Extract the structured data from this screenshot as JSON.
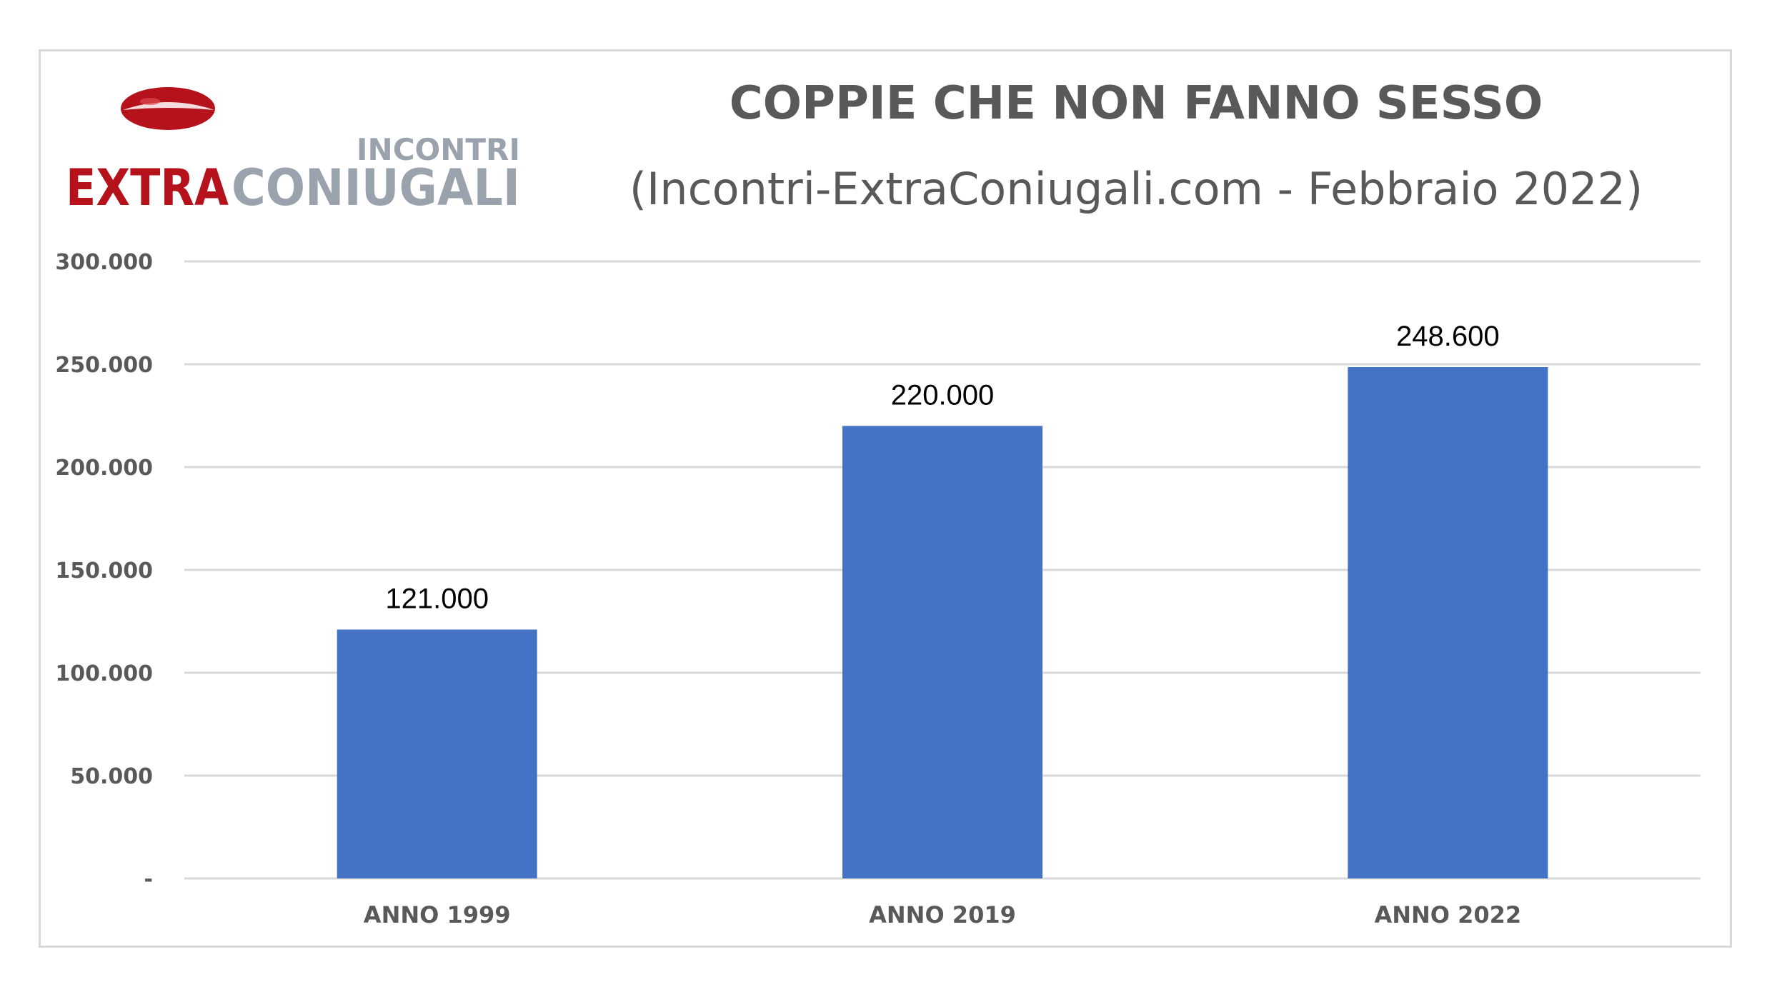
{
  "logo": {
    "small_text": "INCONTRI",
    "text_red": "EXTRA",
    "text_gray": "CONIUGALI",
    "icon": "lips-icon"
  },
  "colors": {
    "bar": "#4472c4",
    "grid": "#d9d9d9",
    "text": "#595959",
    "logo_red": "#b5121b",
    "logo_gray": "#9aa3ad"
  },
  "chart_data": {
    "type": "bar",
    "title": "COPPIE CHE NON FANNO SESSO",
    "subtitle": "(Incontri-ExtraConiugali.com - Febbraio 2022)",
    "categories": [
      "ANNO 1999",
      "ANNO 2019",
      "ANNO 2022"
    ],
    "values": [
      121000,
      220000,
      248600
    ],
    "data_labels": [
      "121.000",
      "220.000",
      "248.600"
    ],
    "ylim": [
      0,
      300000
    ],
    "yticks": [
      0,
      50000,
      100000,
      150000,
      200000,
      250000,
      300000
    ],
    "ytick_labels": [
      "-",
      "50.000",
      "100.000",
      "150.000",
      "200.000",
      "250.000",
      "300.000"
    ],
    "grid": true,
    "legend": "none"
  }
}
